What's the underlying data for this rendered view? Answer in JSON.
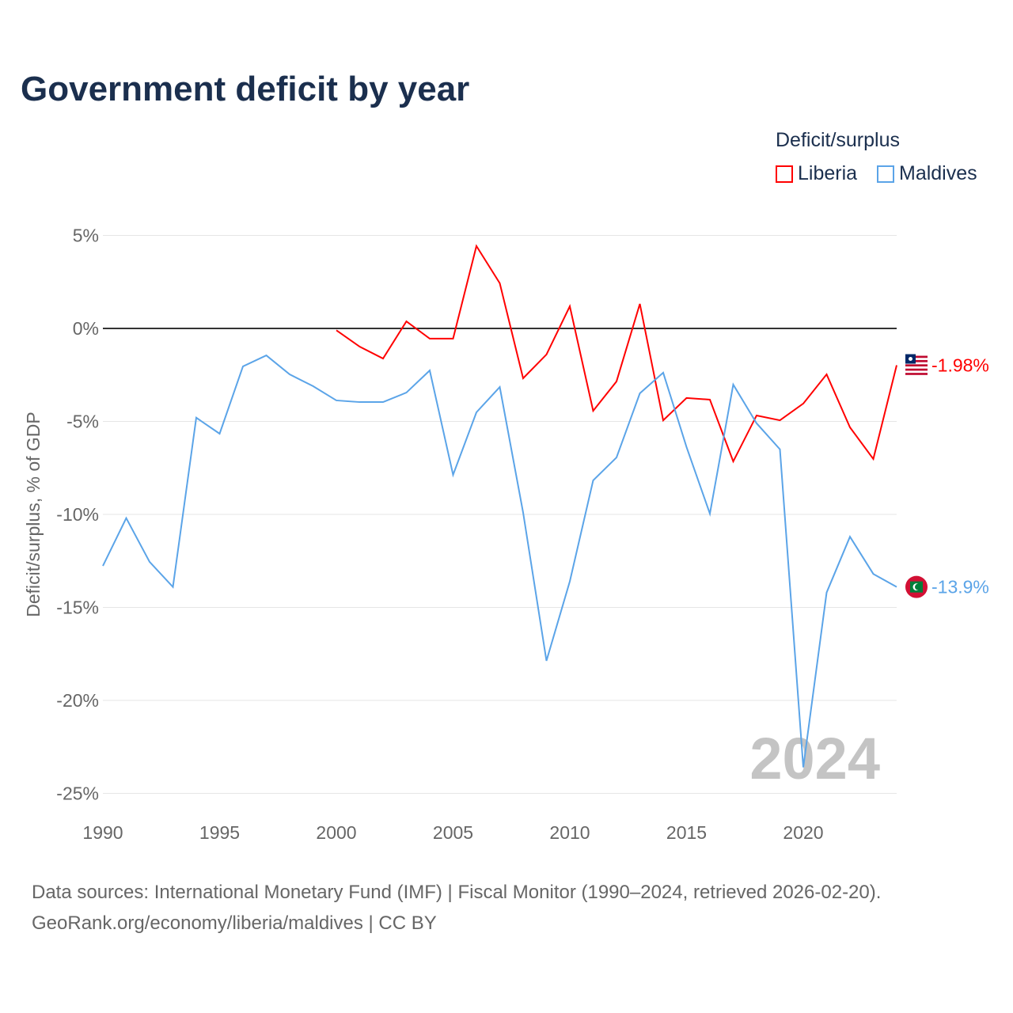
{
  "title": "Government deficit by year",
  "legend": {
    "title": "Deficit/surplus",
    "items": [
      {
        "name": "Liberia",
        "color": "#ff0000"
      },
      {
        "name": "Maldives",
        "color": "#5ba4e8"
      }
    ]
  },
  "footer": {
    "line1": "Data sources: International Monetary Fund (IMF) | Fiscal Monitor (1990–2024, retrieved 2026-02-20).",
    "line2": "GeoRank.org/economy/liberia/maldives | CC BY"
  },
  "chart_data": {
    "type": "line",
    "title": "Government deficit by year",
    "xlabel": "",
    "ylabel": "Deficit/surplus, % of GDP",
    "xlim": [
      1990,
      2024
    ],
    "ylim": [
      -25,
      5
    ],
    "xticks": [
      1990,
      1995,
      2000,
      2005,
      2010,
      2015,
      2020
    ],
    "xtick_labels": [
      "1990",
      "1995",
      "2000",
      "2005",
      "2010",
      "2015",
      "2020"
    ],
    "yticks": [
      5,
      0,
      -5,
      -10,
      -15,
      -20,
      -25
    ],
    "ytick_labels": [
      "5%",
      "0%",
      "-5%",
      "-10%",
      "-15%",
      "-20%",
      "-25%"
    ],
    "year_watermark": "2024",
    "grid": true,
    "legend_position": "top-right",
    "series": [
      {
        "name": "Liberia",
        "color": "#ff0000",
        "end_label": "-1.98%",
        "x": [
          2000,
          2001,
          2002,
          2003,
          2004,
          2005,
          2006,
          2007,
          2008,
          2009,
          2010,
          2011,
          2012,
          2013,
          2014,
          2015,
          2016,
          2017,
          2018,
          2019,
          2020,
          2021,
          2022,
          2023,
          2024
        ],
        "values": [
          -0.1,
          -0.98,
          -1.62,
          0.38,
          -0.55,
          -0.55,
          4.43,
          2.43,
          -2.68,
          -1.4,
          1.19,
          -4.43,
          -2.85,
          1.32,
          -4.94,
          -3.74,
          -3.83,
          -7.15,
          -4.68,
          -4.94,
          -4.04,
          -2.47,
          -5.32,
          -7.02,
          -1.98
        ]
      },
      {
        "name": "Maldives",
        "color": "#5ba4e8",
        "end_label": "-13.9%",
        "x": [
          1990,
          1991,
          1992,
          1993,
          1994,
          1995,
          1996,
          1997,
          1998,
          1999,
          2000,
          2001,
          2002,
          2003,
          2004,
          2005,
          2006,
          2007,
          2008,
          2009,
          2010,
          2011,
          2012,
          2013,
          2014,
          2015,
          2016,
          2017,
          2018,
          2019,
          2020,
          2021,
          2022,
          2023,
          2024
        ],
        "values": [
          -12.77,
          -10.2,
          -12.55,
          -13.9,
          -4.8,
          -5.66,
          -2.04,
          -1.45,
          -2.47,
          -3.1,
          -3.87,
          -3.96,
          -3.96,
          -3.45,
          -2.26,
          -7.87,
          -4.51,
          -3.15,
          -9.9,
          -17.87,
          -13.6,
          -8.17,
          -6.94,
          -3.49,
          -2.38,
          -6.38,
          -9.96,
          -3.02,
          -5.1,
          -6.5,
          -23.6,
          -14.2,
          -11.2,
          -13.2,
          -13.9
        ]
      }
    ]
  }
}
